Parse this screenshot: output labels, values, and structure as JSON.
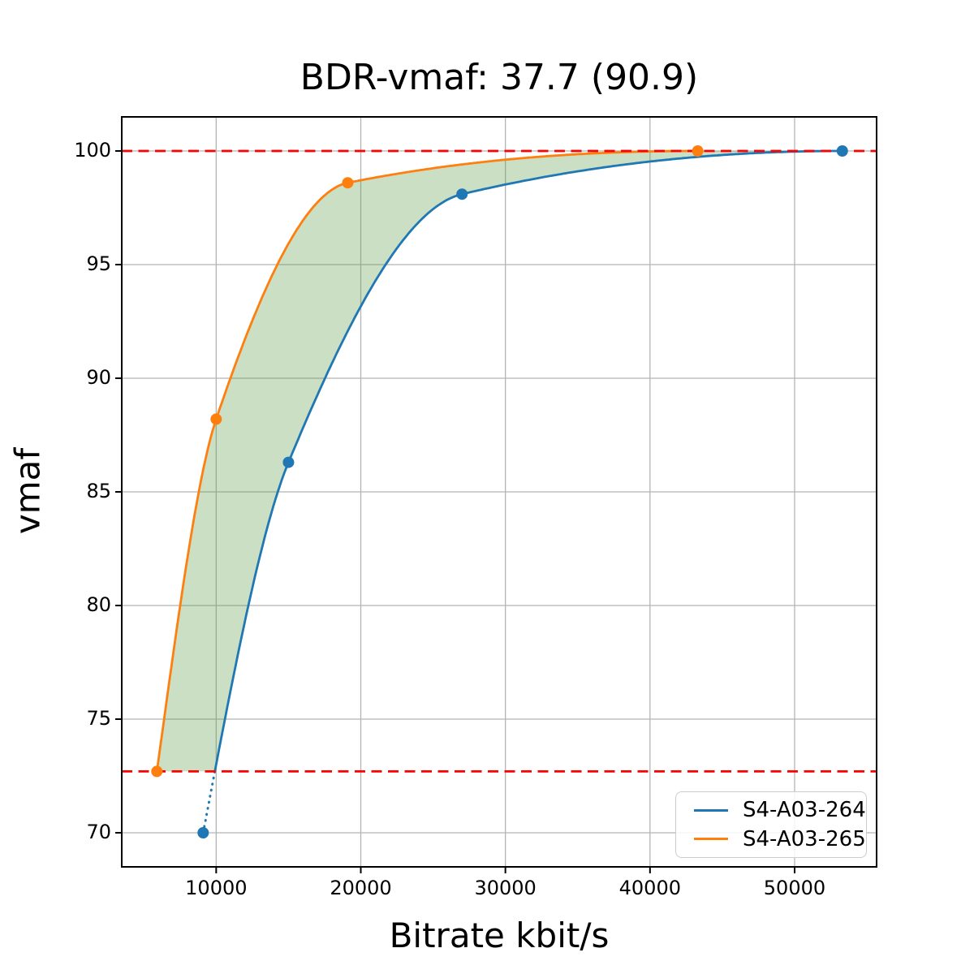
{
  "figure": {
    "title": "BDR-vmaf: 37.7 (90.9)",
    "xlabel": "Bitrate kbit/s",
    "ylabel": "vmaf"
  },
  "legend": {
    "entries": [
      {
        "label": "S4-A03-264",
        "color": "#1f77b4"
      },
      {
        "label": "S4-A03-265",
        "color": "#ff7f0e"
      }
    ]
  },
  "chart_data": {
    "type": "line",
    "title": "BDR-vmaf: 37.7 (90.9)",
    "xlabel": "Bitrate kbit/s",
    "ylabel": "vmaf",
    "xlim": [
      3470,
      55670
    ],
    "ylim": [
      68.5,
      101.5
    ],
    "x_ticks": [
      10000,
      20000,
      30000,
      40000,
      50000
    ],
    "x_tick_labels": [
      "10000",
      "20000",
      "30000",
      "40000",
      "50000"
    ],
    "y_ticks": [
      70,
      75,
      80,
      85,
      90,
      95,
      100
    ],
    "y_tick_labels": [
      "70",
      "75",
      "80",
      "85",
      "90",
      "95",
      "100"
    ],
    "grid": true,
    "grid_color": "#b4b4b4",
    "legend_position": "lower right",
    "interpolation": "pchip",
    "series": [
      {
        "name": "S4-A03-264",
        "color": "#1f77b4",
        "x": [
          9100,
          15000,
          27000,
          53300
        ],
        "y": [
          70.0,
          86.3,
          98.1,
          100.0
        ],
        "note": "segment below vmaf 72.7 drawn dotted"
      },
      {
        "name": "S4-A03-265",
        "color": "#ff7f0e",
        "x": [
          5900,
          10000,
          19100,
          43300
        ],
        "y": [
          72.7,
          88.2,
          98.6,
          100.0
        ]
      }
    ],
    "reference_lines": {
      "color": "#ff0000",
      "style": "dashed",
      "y_values": [
        100.0,
        72.7
      ]
    },
    "shaded_region": {
      "between": "curves",
      "vmaf_range": [
        72.7,
        100.0
      ],
      "color": "#5c9a4a",
      "opacity": 0.32
    }
  }
}
